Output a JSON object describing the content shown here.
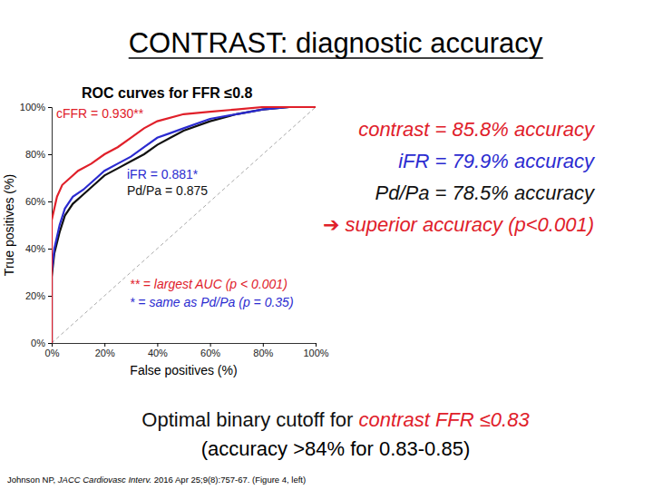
{
  "chart_data": {
    "type": "line",
    "title": "ROC curves for FFR ≤0.8",
    "x_label": "False positives (%)",
    "y_label": "True positives (%)",
    "xlim": [
      0,
      100
    ],
    "ylim": [
      0,
      100
    ],
    "xticks": [
      {
        "value": 0,
        "label": "0%"
      },
      {
        "value": 20,
        "label": "20%"
      },
      {
        "value": 40,
        "label": "40%"
      },
      {
        "value": 60,
        "label": "60%"
      },
      {
        "value": 80,
        "label": "80%"
      },
      {
        "value": 100,
        "label": "100%"
      }
    ],
    "yticks": [
      {
        "value": 0,
        "label": "0%"
      },
      {
        "value": 20,
        "label": "20%"
      },
      {
        "value": 40,
        "label": "40%"
      },
      {
        "value": 60,
        "label": "60%"
      },
      {
        "value": 80,
        "label": "80%"
      },
      {
        "value": 100,
        "label": "100%"
      }
    ],
    "grid": false,
    "series": [
      {
        "color": "#aaaaaa",
        "line_style": "dashed",
        "x": [
          0,
          100
        ],
        "values": [
          0,
          100
        ]
      },
      {
        "name": "Pd/Pa = 0.875",
        "color": "#111111",
        "x": [
          0,
          0,
          1,
          3,
          5,
          8,
          12,
          17,
          20,
          25,
          30,
          35,
          40,
          45,
          50,
          60,
          70,
          80,
          90,
          100
        ],
        "values": [
          0,
          28,
          38,
          47,
          54,
          59,
          63,
          68,
          71,
          74,
          77,
          80,
          84,
          87,
          90,
          94,
          97,
          99,
          100,
          100
        ]
      },
      {
        "name": "iFR = 0.881*",
        "color": "#2b2bd0",
        "x": [
          0,
          0,
          1,
          3,
          5,
          8,
          12,
          17,
          20,
          25,
          30,
          35,
          40,
          45,
          50,
          60,
          70,
          80,
          90,
          100
        ],
        "values": [
          0,
          30,
          40,
          50,
          57,
          62,
          65,
          70,
          73,
          76,
          79,
          83,
          87,
          89,
          91,
          95,
          97,
          99,
          100,
          100
        ]
      },
      {
        "name": "cFFR = 0.930**",
        "color": "#e0202a",
        "x": [
          0,
          0,
          1,
          2,
          4,
          7,
          10,
          15,
          20,
          25,
          30,
          35,
          40,
          50,
          60,
          70,
          80,
          100
        ],
        "values": [
          0,
          52,
          57,
          62,
          67,
          70,
          73,
          76,
          80,
          83,
          87,
          91,
          94,
          97,
          98,
          99,
          100,
          100
        ]
      }
    ],
    "annotations": [
      {
        "text": "** = largest AUC (p < 0.001)",
        "color": "#e0202a"
      },
      {
        "text": "* = same as Pd/Pa (p = 0.35)",
        "color": "#2b2bd0"
      }
    ]
  },
  "slide": {
    "title": "CONTRAST: diagnostic accuracy",
    "results": [
      {
        "text": "contrast = 85.8% accuracy",
        "color": "#e0202a"
      },
      {
        "text": "iFR = 79.9% accuracy",
        "color": "#2b2bd0"
      },
      {
        "text": "Pd/Pa = 78.5% accuracy",
        "color": "#111111"
      },
      {
        "text": "➔ superior accuracy (p<0.001)",
        "color": "#e0202a"
      }
    ],
    "cutoff": [
      {
        "text": "Optimal binary cutoff for ",
        "color": "#111111"
      },
      {
        "text": "contrast FFR ≤0.83",
        "color": "#e0202a"
      }
    ],
    "cutoff_note": "(accuracy >84% for 0.83-0.85)",
    "citation": [
      "Johnson NP, ",
      "JACC Cardiovasc Interv.",
      " 2016 Apr 25;9(8):757-67. (Figure 4, left)"
    ]
  }
}
